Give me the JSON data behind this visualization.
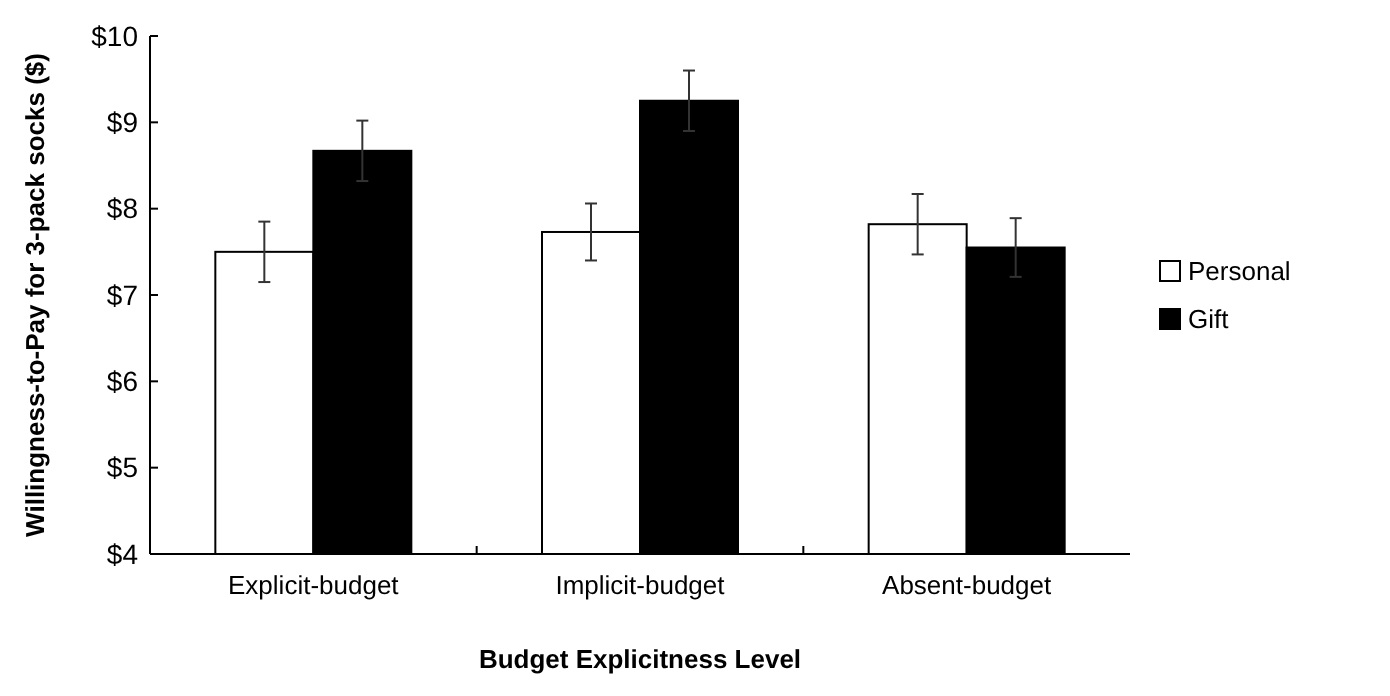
{
  "chart_data": {
    "type": "bar",
    "xlabel": "Budget Explicitness Level",
    "ylabel": "Willingness-to-Pay for 3-pack socks ($)",
    "categories": [
      "Explicit-budget",
      "Implicit-budget",
      "Absent-budget"
    ],
    "series": [
      {
        "name": "Personal",
        "color": "#ffffff",
        "values": [
          7.5,
          7.73,
          7.82
        ],
        "errors": [
          0.35,
          0.33,
          0.35
        ]
      },
      {
        "name": "Gift",
        "color": "#000000",
        "values": [
          8.67,
          9.25,
          7.55
        ],
        "errors": [
          0.35,
          0.35,
          0.34
        ]
      }
    ],
    "ylim": [
      4,
      10
    ],
    "yticks": [
      {
        "value": 4,
        "label": "$4"
      },
      {
        "value": 5,
        "label": "$5"
      },
      {
        "value": 6,
        "label": "$6"
      },
      {
        "value": 7,
        "label": "$7"
      },
      {
        "value": 8,
        "label": "$8"
      },
      {
        "value": 9,
        "label": "$9"
      },
      {
        "value": 10,
        "label": "$10"
      }
    ],
    "grid": false,
    "legend": "right"
  }
}
